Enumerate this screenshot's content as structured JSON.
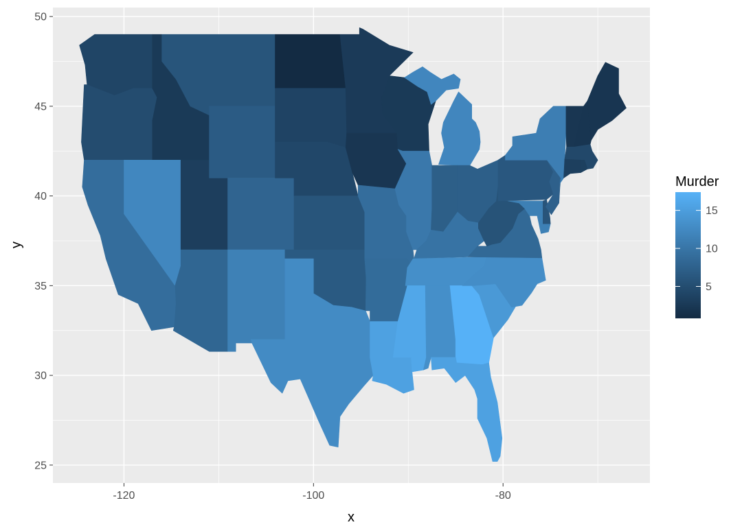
{
  "chart_data": {
    "type": "choropleth",
    "xlabel": "x",
    "ylabel": "y",
    "xlim": [
      -127.5,
      -64.5
    ],
    "ylim": [
      24.0,
      50.5
    ],
    "x_ticks": [
      -120,
      -100,
      -80
    ],
    "y_ticks": [
      25,
      30,
      35,
      40,
      45,
      50
    ],
    "grid": true,
    "legend": {
      "title": "Murder",
      "position": "right",
      "range": [
        0.8,
        17.4
      ],
      "breaks": [
        5,
        10,
        15
      ],
      "low_color": "#132B43",
      "high_color": "#56B1F7"
    },
    "colors": {
      "panel_background": "#EBEBEB",
      "grid_major": "#FFFFFF",
      "tick": "#333333"
    },
    "regions": [
      {
        "name": "alabama",
        "value": 13.2
      },
      {
        "name": "arizona",
        "value": 8.1
      },
      {
        "name": "arkansas",
        "value": 8.8
      },
      {
        "name": "california",
        "value": 9.0
      },
      {
        "name": "colorado",
        "value": 7.9
      },
      {
        "name": "connecticut",
        "value": 3.3
      },
      {
        "name": "delaware",
        "value": 5.9
      },
      {
        "name": "florida",
        "value": 15.4
      },
      {
        "name": "georgia",
        "value": 17.4
      },
      {
        "name": "idaho",
        "value": 2.6
      },
      {
        "name": "illinois",
        "value": 10.4
      },
      {
        "name": "indiana",
        "value": 7.2
      },
      {
        "name": "iowa",
        "value": 2.2
      },
      {
        "name": "kansas",
        "value": 6.0
      },
      {
        "name": "kentucky",
        "value": 9.7
      },
      {
        "name": "louisiana",
        "value": 15.4
      },
      {
        "name": "maine",
        "value": 2.1
      },
      {
        "name": "maryland",
        "value": 11.3
      },
      {
        "name": "massachusetts",
        "value": 4.4
      },
      {
        "name": "michigan",
        "value": 12.1
      },
      {
        "name": "minnesota",
        "value": 2.7
      },
      {
        "name": "mississippi",
        "value": 16.1
      },
      {
        "name": "missouri",
        "value": 9.0
      },
      {
        "name": "montana",
        "value": 6.0
      },
      {
        "name": "nebraska",
        "value": 4.3
      },
      {
        "name": "nevada",
        "value": 12.2
      },
      {
        "name": "new hampshire",
        "value": 2.1
      },
      {
        "name": "new jersey",
        "value": 7.4
      },
      {
        "name": "new mexico",
        "value": 11.4
      },
      {
        "name": "new york",
        "value": 11.1
      },
      {
        "name": "north carolina",
        "value": 13.0
      },
      {
        "name": "north dakota",
        "value": 0.8
      },
      {
        "name": "ohio",
        "value": 7.3
      },
      {
        "name": "oklahoma",
        "value": 6.6
      },
      {
        "name": "oregon",
        "value": 4.9
      },
      {
        "name": "pennsylvania",
        "value": 6.3
      },
      {
        "name": "rhode island",
        "value": 3.4
      },
      {
        "name": "south carolina",
        "value": 14.4
      },
      {
        "name": "south dakota",
        "value": 3.8
      },
      {
        "name": "tennessee",
        "value": 13.2
      },
      {
        "name": "texas",
        "value": 12.7
      },
      {
        "name": "utah",
        "value": 3.2
      },
      {
        "name": "vermont",
        "value": 2.2
      },
      {
        "name": "virginia",
        "value": 8.5
      },
      {
        "name": "washington",
        "value": 4.0
      },
      {
        "name": "west virginia",
        "value": 5.7
      },
      {
        "name": "wisconsin",
        "value": 2.6
      },
      {
        "name": "wyoming",
        "value": 6.8
      }
    ]
  }
}
